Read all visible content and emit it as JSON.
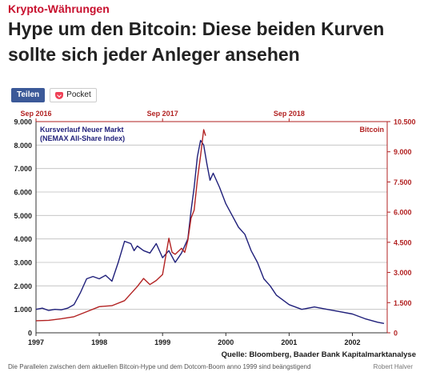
{
  "article": {
    "kicker": "Krypto-Währungen",
    "title": "Hype um den Bitcoin: Diese beiden Kurven sollte sich jeder Anleger ansehen",
    "share_label": "Teilen",
    "pocket_label": "Pocket",
    "caption": "Die Parallelen zwischen dem aktuellen Bitcoin-Hype und dem Dotcom-Boom anno 1999 sind beängstigend",
    "credit": "Robert Halver"
  },
  "chart_data": {
    "type": "line",
    "source": "Quelle: Bloomberg, Baader Bank Kapitalmarktanalyse",
    "left_axis": {
      "title_line1": "Kursverlauf Neuer Markt",
      "title_line2": "(NEMAX All-Share Index)",
      "ylim": [
        0,
        9000
      ],
      "ticks": [
        "0",
        "1.000",
        "2.000",
        "3.000",
        "4.000",
        "5.000",
        "6.000",
        "7.000",
        "8.000",
        "9.000"
      ]
    },
    "right_axis": {
      "title": "Bitcoin",
      "ylim": [
        0,
        10500
      ],
      "ticks": [
        "0",
        "1.500",
        "3.000",
        "4.500",
        "6.000",
        "7.500",
        "9.000",
        "10.500"
      ]
    },
    "bottom_axis": {
      "xlim": [
        1997.0,
        2002.55
      ],
      "ticks": [
        "1997",
        "1998",
        "1999",
        "2000",
        "2001",
        "2002"
      ]
    },
    "top_axis": {
      "ticks": [
        "Sep 2016",
        "Sep 2017",
        "Sep 2018"
      ]
    },
    "colors": {
      "nemax": "#1f1f7a",
      "bitcoin": "#b22222",
      "top_axis": "#b22222",
      "right_axis": "#b22222"
    },
    "series": [
      {
        "name": "Kursverlauf Neuer Markt",
        "axis": "left",
        "x": [
          1997.0,
          1997.1,
          1997.2,
          1997.3,
          1997.4,
          1997.5,
          1997.6,
          1997.7,
          1997.8,
          1997.9,
          1998.0,
          1998.1,
          1998.2,
          1998.3,
          1998.4,
          1998.5,
          1998.55,
          1998.6,
          1998.7,
          1998.8,
          1998.9,
          1999.0,
          1999.1,
          1999.2,
          1999.3,
          1999.4,
          1999.45,
          1999.5,
          1999.55,
          1999.6,
          1999.65,
          1999.7,
          1999.75,
          1999.8,
          1999.9,
          2000.0,
          2000.1,
          2000.2,
          2000.3,
          2000.4,
          2000.5,
          2000.6,
          2000.7,
          2000.8,
          2000.9,
          2001.0,
          2001.2,
          2001.4,
          2001.6,
          2001.8,
          2002.0,
          2002.2,
          2002.4,
          2002.5
        ],
        "y": [
          1000,
          1050,
          950,
          1000,
          980,
          1050,
          1200,
          1700,
          2300,
          2400,
          2300,
          2450,
          2200,
          3000,
          3900,
          3800,
          3500,
          3700,
          3500,
          3400,
          3800,
          3200,
          3500,
          3000,
          3400,
          4000,
          5200,
          6200,
          7500,
          8200,
          8000,
          7200,
          6500,
          6800,
          6200,
          5500,
          5000,
          4500,
          4200,
          3500,
          3000,
          2300,
          2000,
          1600,
          1400,
          1200,
          1000,
          1100,
          1000,
          900,
          800,
          600,
          450,
          400
        ]
      },
      {
        "name": "Bitcoin",
        "axis": "right",
        "x": [
          1997.0,
          1997.2,
          1997.4,
          1997.6,
          1997.8,
          1998.0,
          1998.2,
          1998.4,
          1998.6,
          1998.7,
          1998.8,
          1998.9,
          1999.0,
          1999.1,
          1999.15,
          1999.2,
          1999.3,
          1999.35,
          1999.4,
          1999.45,
          1999.5,
          1999.55,
          1999.6,
          1999.65,
          1999.68
        ],
        "y": [
          600,
          620,
          700,
          800,
          1050,
          1300,
          1350,
          1600,
          2300,
          2700,
          2400,
          2600,
          2900,
          4700,
          4000,
          3900,
          4200,
          4000,
          4600,
          5700,
          6100,
          7600,
          8800,
          10100,
          9800
        ]
      }
    ]
  }
}
